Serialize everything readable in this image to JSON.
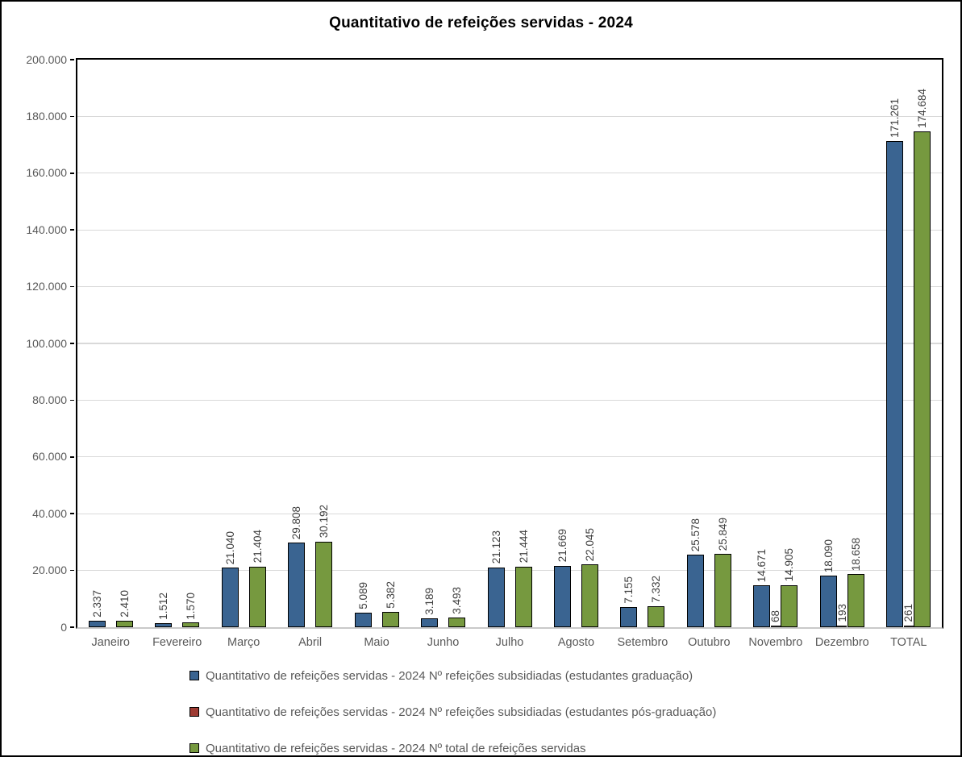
{
  "window": {
    "background": "#ffffff",
    "border_color": "#000000"
  },
  "chart_data": {
    "type": "bar",
    "title": "Quantitativo de refeições servidas - 2024",
    "categories": [
      "Janeiro",
      "Fevereiro",
      "Março",
      "Abril",
      "Maio",
      "Junho",
      "Julho",
      "Agosto",
      "Setembro",
      "Outubro",
      "Novembro",
      "Dezembro",
      "TOTAL"
    ],
    "series": [
      {
        "key": "graduacao",
        "name": "Quantitativo de refeições servidas - 2024 Nº refeições subsidiadas (estudantes graduação)",
        "color": "#3A6491",
        "values": [
          2337,
          1512,
          21040,
          29808,
          5089,
          3189,
          21123,
          21669,
          7155,
          25578,
          14671,
          18090,
          171261
        ]
      },
      {
        "key": "pos_graduacao",
        "name": "Quantitativo de refeições servidas - 2024 Nº refeições subsidiadas (estudantes pós-graduação)",
        "color": "#9E3B33",
        "values": [
          null,
          null,
          null,
          null,
          null,
          null,
          null,
          null,
          null,
          null,
          68,
          193,
          261
        ]
      },
      {
        "key": "total",
        "name": "Quantitativo de refeições servidas - 2024 Nº total de refeições servidas",
        "color": "#76993F",
        "values": [
          2410,
          1570,
          21404,
          30192,
          5382,
          3493,
          21444,
          22045,
          7332,
          25849,
          14905,
          18658,
          174684
        ]
      }
    ],
    "ylim": [
      0,
      200000
    ],
    "ytick_step": 20000,
    "ytick_labels": [
      "0",
      "20.000",
      "40.000",
      "60.000",
      "80.000",
      "100.000",
      "120.000",
      "140.000",
      "160.000",
      "180.000",
      "200.000"
    ],
    "grid": true,
    "legend_position": "bottom",
    "data_label_rotation": -90,
    "number_format": "thousands-dot",
    "colors": {
      "gridline": "#d9d9d9",
      "axis_line": "#000000",
      "category_axis_line": "#c9c9c9",
      "axis_text": "#595959",
      "data_label_text": "#3f3f3f",
      "bar_border": "#000000",
      "title_text": "#000000"
    }
  }
}
